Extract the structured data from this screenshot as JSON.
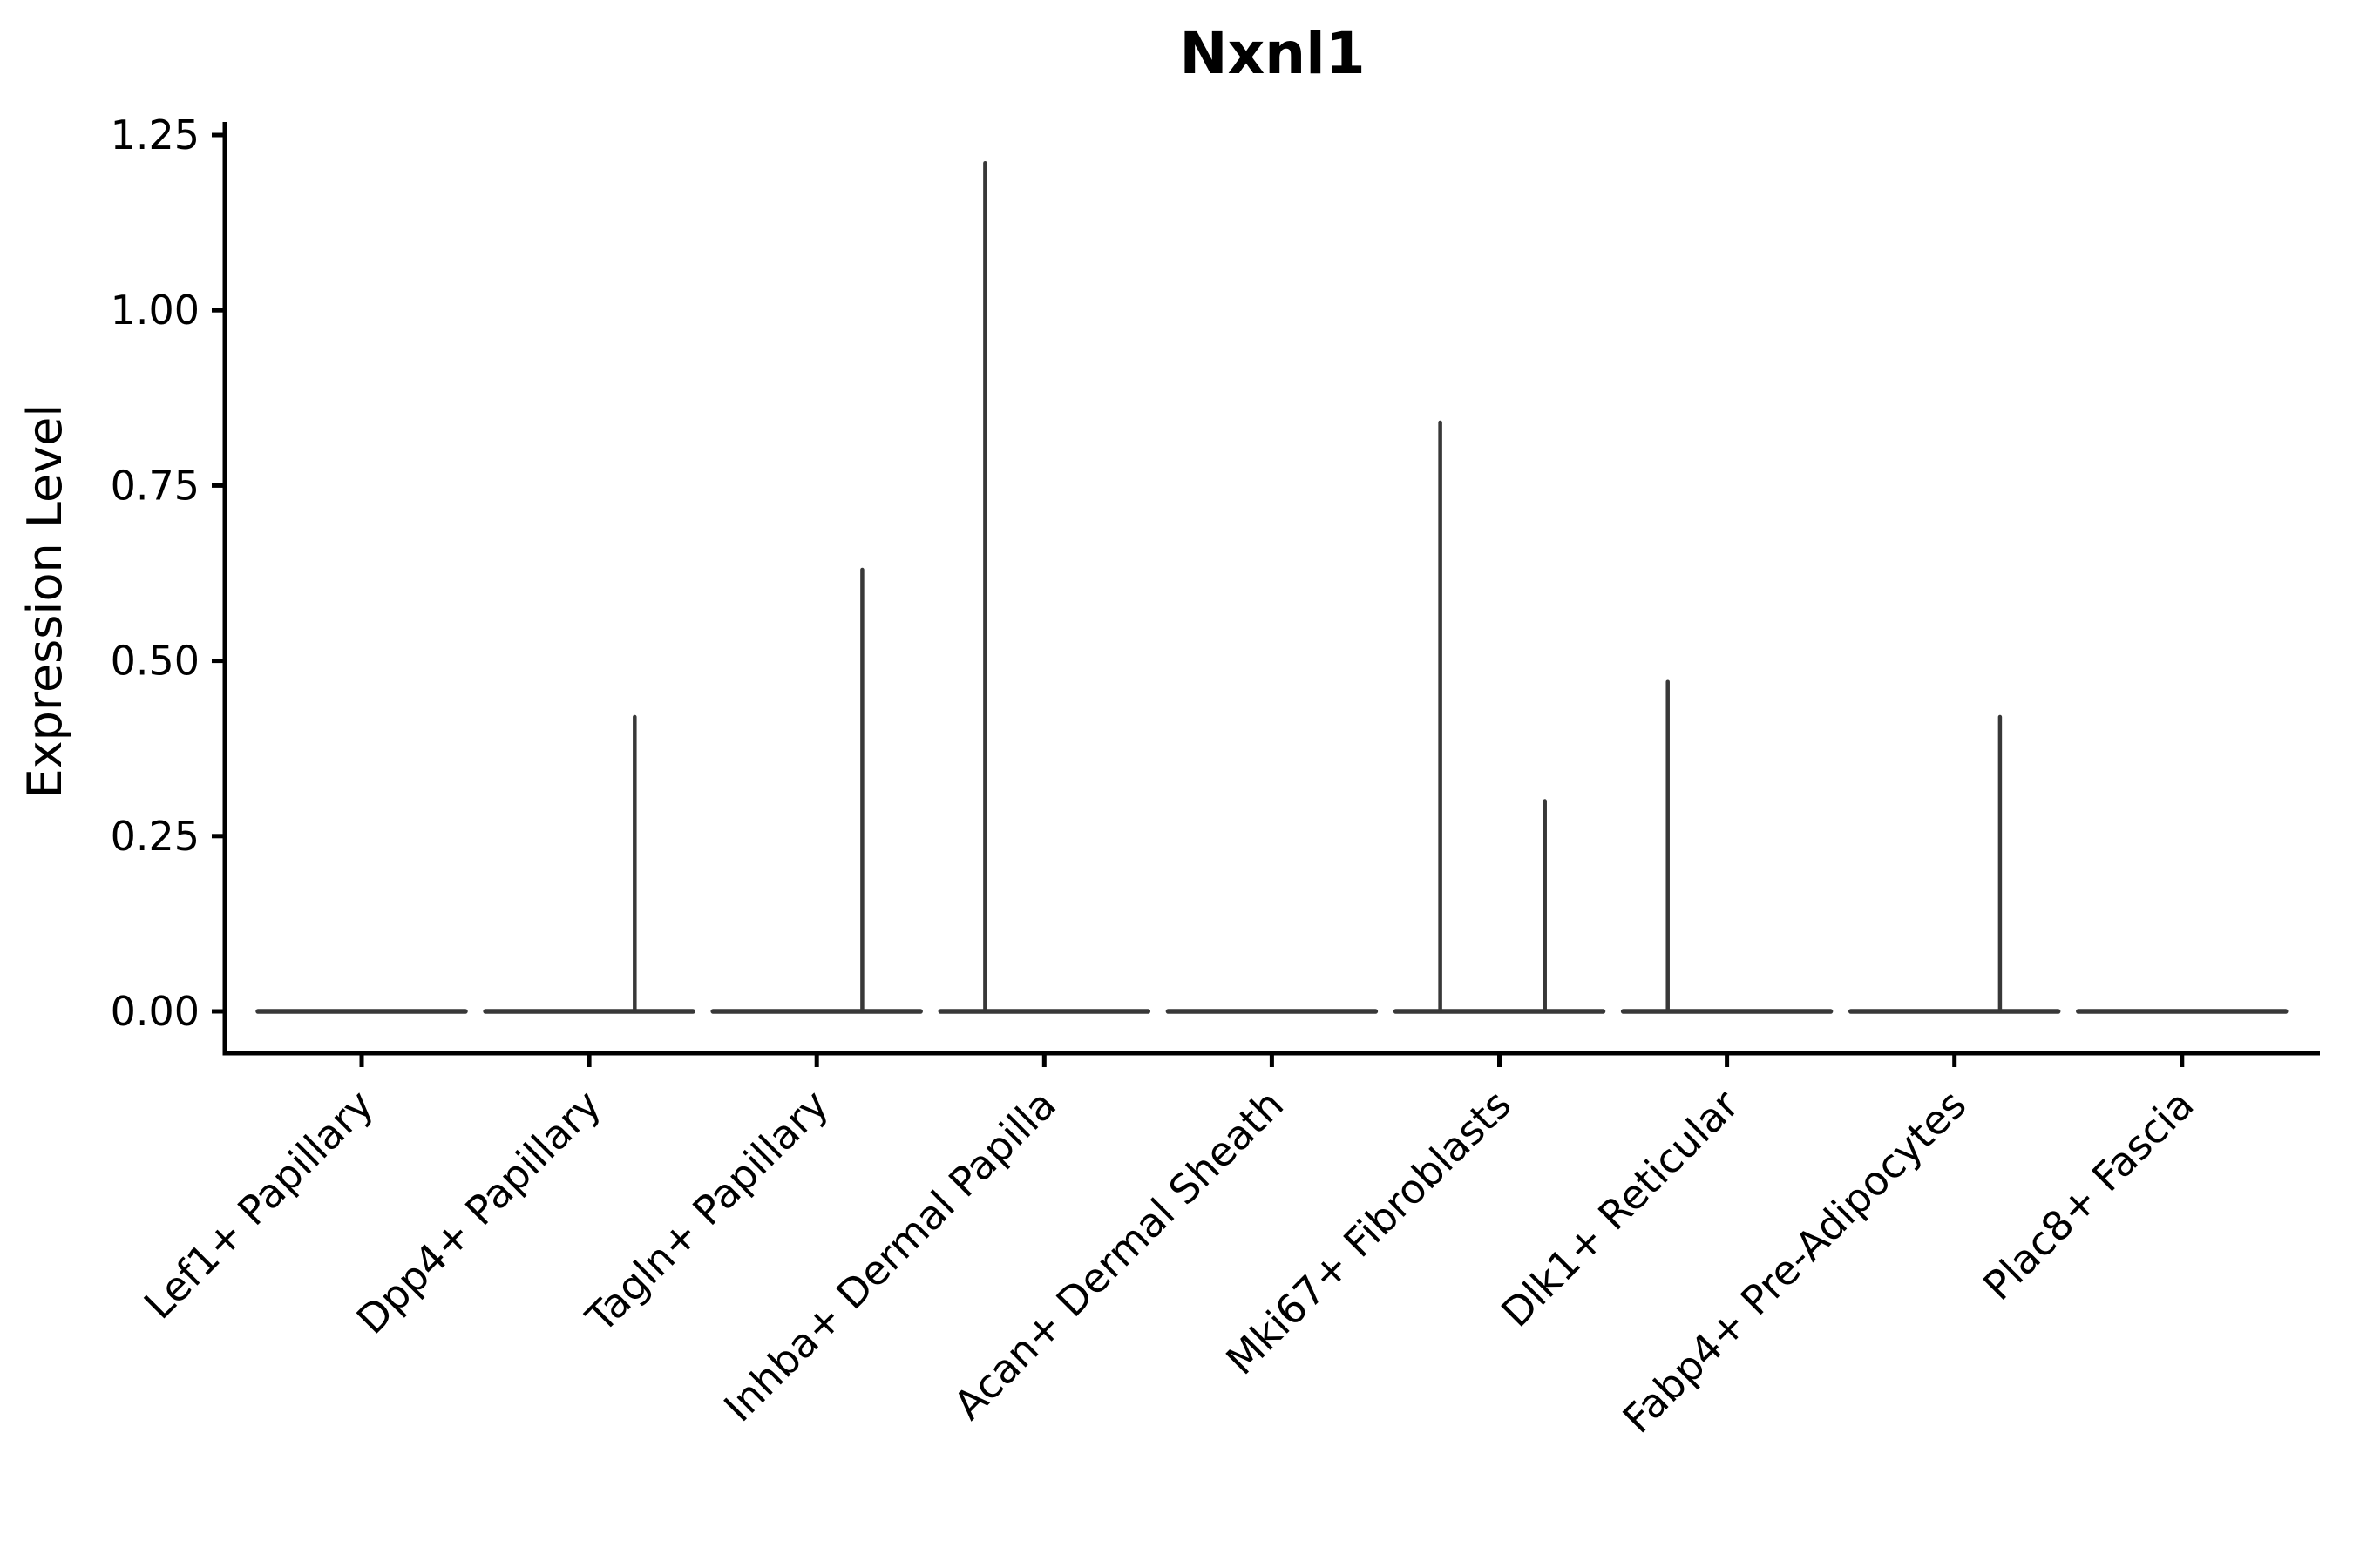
{
  "figure": {
    "background": "#ffffff",
    "title": "Nxnl1"
  },
  "chart_data": {
    "type": "violin",
    "title": "Nxnl1",
    "xlabel": "",
    "ylabel": "Expression Level",
    "ylim": [
      0,
      1.25
    ],
    "yticks": [
      0.0,
      0.25,
      0.5,
      0.75,
      1.0,
      1.25
    ],
    "ytick_labels": [
      "0.00",
      "0.25",
      "0.50",
      "0.75",
      "1.00",
      "1.25"
    ],
    "categories": [
      "Lef1+ Papillary",
      "Dpp4+ Papillary",
      "Tagln+ Papillary",
      "Inhba+ Dermal Papilla",
      "Acan+ Dermal Sheath",
      "Mki67+ Fibroblasts",
      "Dlk1+ Reticular",
      "Fabp4+ Pre-Adipocytes",
      "Plac8+ Fascia"
    ],
    "series": [
      {
        "name": "Lef1+ Papillary",
        "baseline_value": 0,
        "spikes": []
      },
      {
        "name": "Dpp4+ Papillary",
        "baseline_value": 0,
        "spikes": [
          {
            "position": "right",
            "value": 0.42
          }
        ]
      },
      {
        "name": "Tagln+ Papillary",
        "baseline_value": 0,
        "spikes": [
          {
            "position": "right",
            "value": 0.63
          }
        ]
      },
      {
        "name": "Inhba+ Dermal Papilla",
        "baseline_value": 0,
        "spikes": [
          {
            "position": "left",
            "value": 1.21
          }
        ]
      },
      {
        "name": "Acan+ Dermal Sheath",
        "baseline_value": 0,
        "spikes": []
      },
      {
        "name": "Mki67+ Fibroblasts",
        "baseline_value": 0,
        "spikes": [
          {
            "position": "left",
            "value": 0.84
          },
          {
            "position": "right",
            "value": 0.3
          }
        ]
      },
      {
        "name": "Dlk1+ Reticular",
        "baseline_value": 0,
        "spikes": [
          {
            "position": "left",
            "value": 0.47
          }
        ]
      },
      {
        "name": "Fabp4+ Pre-Adipocytes",
        "baseline_value": 0,
        "spikes": [
          {
            "position": "right",
            "value": 0.42
          }
        ]
      },
      {
        "name": "Plac8+ Fascia",
        "baseline_value": 0,
        "spikes": []
      }
    ],
    "violin_color": "#383838",
    "axis_color": "#000000",
    "grid": false,
    "legend_position": "none",
    "x_tick_rotation_deg": 45
  }
}
